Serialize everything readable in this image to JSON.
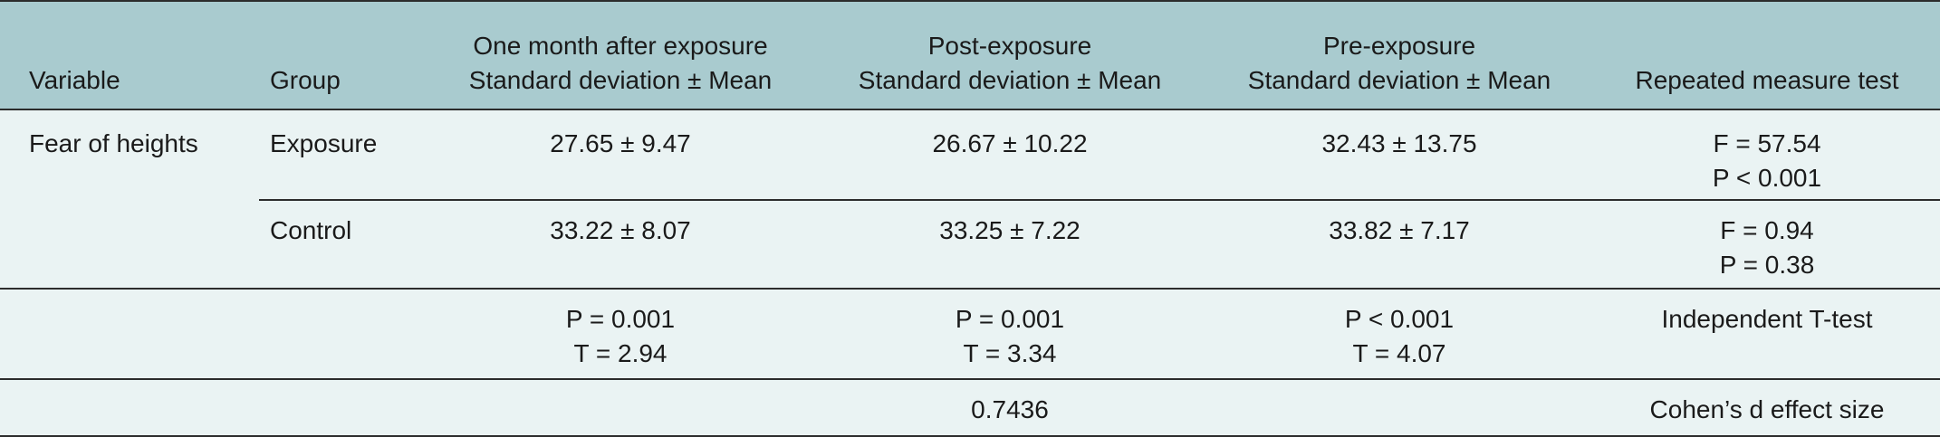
{
  "header": {
    "variable": "Variable",
    "group": "Group",
    "one_month_line1": "One month after exposure",
    "one_month_line2": "Standard deviation ± Mean",
    "post_line1": "Post-exposure",
    "post_line2": "Standard deviation ± Mean",
    "pre_line1": "Pre-exposure",
    "pre_line2": "Standard deviation ± Mean",
    "repeated": "Repeated measure test"
  },
  "rows": {
    "variable_name": "Fear of heights",
    "exposure": {
      "group": "Exposure",
      "one_month": "27.65 ± 9.47",
      "post": "26.67 ± 10.22",
      "pre": "32.43 ± 13.75",
      "test_line1": "F = 57.54",
      "test_line2": "P < 0.001"
    },
    "control": {
      "group": "Control",
      "one_month": "33.22 ± 8.07",
      "post": "33.25 ± 7.22",
      "pre": "33.82 ± 7.17",
      "test_line1": "F = 0.94",
      "test_line2": "P = 0.38"
    },
    "ttest": {
      "one_month_p": "P = 0.001",
      "one_month_t": "T = 2.94",
      "post_p": "P = 0.001",
      "post_t": "T = 3.34",
      "pre_p": "P < 0.001",
      "pre_t": "T = 4.07",
      "label": "Independent T-test"
    },
    "cohen": {
      "value": "0.7436",
      "label": "Cohen’s d effect size"
    }
  },
  "colors": {
    "header_background": "#a9cbcf",
    "body_background": "#eaf3f3",
    "rule": "#2c2c2c"
  }
}
